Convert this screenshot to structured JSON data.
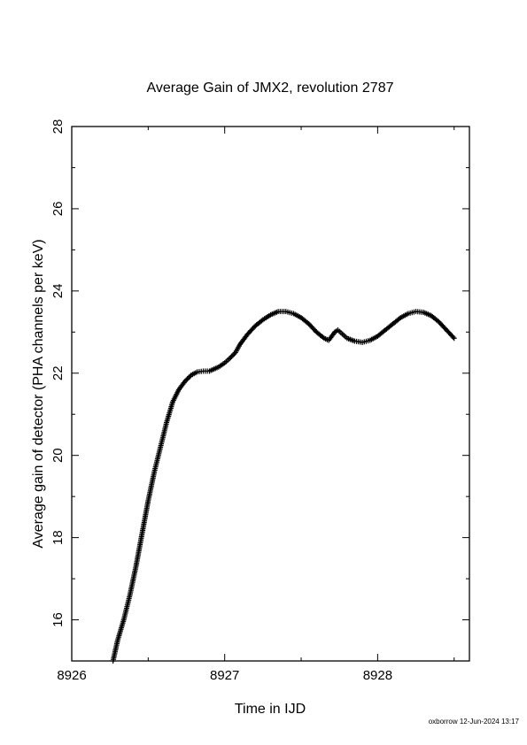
{
  "chart_data": {
    "type": "line",
    "title": "Average Gain of JMX2, revolution 2787",
    "xlabel": "Time in IJD",
    "ylabel": "Average gain of detector (PHA channels per keV)",
    "xlim": [
      8926,
      8928.6
    ],
    "ylim": [
      15,
      28
    ],
    "xticks": [
      "8926",
      "8927",
      "8928"
    ],
    "yticks": [
      "16",
      "18",
      "20",
      "22",
      "24",
      "26",
      "28"
    ],
    "grid": false,
    "legend": "none",
    "line_color": "#000000",
    "series": [
      {
        "marker": "plus",
        "x": [
          8926.27,
          8926.3,
          8926.34,
          8926.38,
          8926.42,
          8926.46,
          8926.5,
          8926.54,
          8926.58,
          8926.62,
          8926.66,
          8926.7,
          8926.74,
          8926.78,
          8926.82,
          8926.86,
          8926.9,
          8926.93,
          8926.96,
          8927.0,
          8927.03,
          8927.07,
          8927.1,
          8927.15,
          8927.2,
          8927.25,
          8927.3,
          8927.35,
          8927.4,
          8927.45,
          8927.5,
          8927.55,
          8927.6,
          8927.65,
          8927.68,
          8927.7,
          8927.72,
          8927.74,
          8927.77,
          8927.8,
          8927.85,
          8927.9,
          8927.95,
          8928.0,
          8928.05,
          8928.1,
          8928.15,
          8928.2,
          8928.25,
          8928.3,
          8928.35,
          8928.4,
          8928.45,
          8928.5
        ],
        "y": [
          15.0,
          15.5,
          16.0,
          16.6,
          17.3,
          18.1,
          18.9,
          19.6,
          20.2,
          20.8,
          21.3,
          21.6,
          21.8,
          21.95,
          22.03,
          22.05,
          22.05,
          22.1,
          22.15,
          22.25,
          22.35,
          22.5,
          22.7,
          22.95,
          23.15,
          23.3,
          23.42,
          23.5,
          23.5,
          23.45,
          23.35,
          23.2,
          23.0,
          22.85,
          22.8,
          22.9,
          23.0,
          23.05,
          22.95,
          22.85,
          22.78,
          22.75,
          22.8,
          22.9,
          23.05,
          23.2,
          23.35,
          23.45,
          23.5,
          23.48,
          23.4,
          23.25,
          23.05,
          22.85
        ]
      }
    ]
  },
  "footer": {
    "credit": "oxborrow 12-Jun-2024 13:17"
  }
}
